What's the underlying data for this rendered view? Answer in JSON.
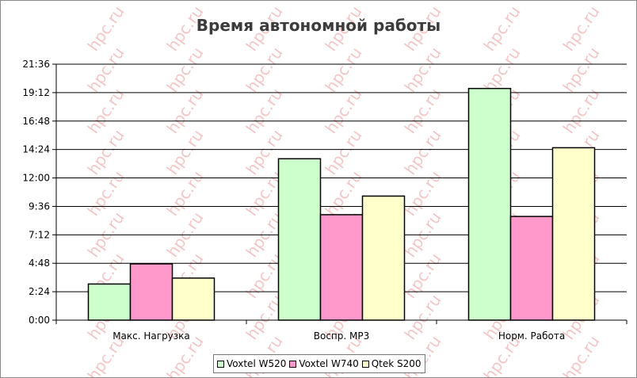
{
  "chart_data": {
    "type": "bar",
    "title": "Время автономной работы",
    "xlabel": "",
    "ylabel": "",
    "categories": [
      "Макс. Нагрузка",
      "Воспр. MP3",
      "Норм. Работа"
    ],
    "series": [
      {
        "name": "Voxtel W520",
        "color": "#ccffcc",
        "values": [
          3.05,
          13.62,
          19.55
        ]
      },
      {
        "name": "Voxtel W740",
        "color": "#ff99cc",
        "values": [
          4.75,
          8.9,
          8.75
        ]
      },
      {
        "name": "Qtek S200",
        "color": "#ffffcc",
        "values": [
          3.55,
          10.47,
          14.55
        ]
      }
    ],
    "ylim": [
      0,
      21.6
    ],
    "y_ticks": [
      0,
      2.4,
      4.8,
      7.2,
      9.6,
      12,
      14.4,
      16.8,
      19.2,
      21.6
    ],
    "y_tick_labels": [
      "0:00",
      "2:24",
      "4:48",
      "7:12",
      "9:36",
      "12:00",
      "14:24",
      "16:48",
      "19:12",
      "21:36"
    ],
    "grid": true,
    "legend_position": "bottom"
  },
  "watermark_text": "hpc.ru",
  "bar_outline_color": "#000000"
}
